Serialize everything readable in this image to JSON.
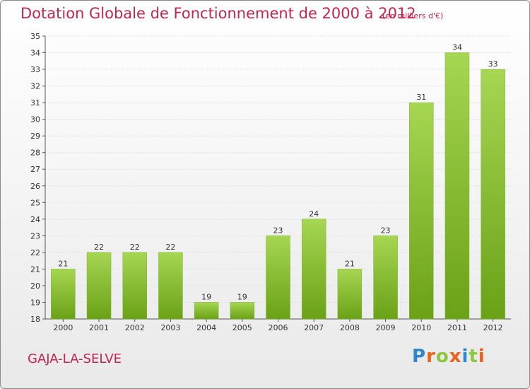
{
  "title": "Dotation Globale de Fonctionnement de 2000 à 2012",
  "subtitle": "(en milliers d'€)",
  "commune": "GAJA-LA-SELVE",
  "brand": {
    "letters": [
      "P",
      "r",
      "o",
      "x",
      "i",
      "t",
      "i"
    ],
    "colors": [
      "#2f86c8",
      "#e8641e",
      "#8cc63f",
      "#e8641e",
      "#2f86c8",
      "#8cc63f",
      "#e8641e"
    ]
  },
  "colors": {
    "title": "#c2264f",
    "bar_light": "#a6d653",
    "bar_dark": "#6aa116",
    "grid": "#dddddd"
  },
  "chart_data": {
    "type": "bar",
    "title": "Dotation Globale de Fonctionnement de 2000 à 2012",
    "subtitle": "(en milliers d'€)",
    "categories": [
      "2000",
      "2001",
      "2002",
      "2003",
      "2004",
      "2005",
      "2006",
      "2007",
      "2008",
      "2009",
      "2010",
      "2011",
      "2012"
    ],
    "values": [
      21,
      22,
      22,
      22,
      19,
      19,
      23,
      24,
      21,
      23,
      31,
      34,
      33
    ],
    "ylim": [
      18,
      35
    ],
    "yticks": [
      18,
      19,
      20,
      21,
      22,
      23,
      24,
      25,
      26,
      27,
      28,
      29,
      30,
      31,
      32,
      33,
      34,
      35
    ],
    "grid": true,
    "xlabel": "",
    "ylabel": ""
  }
}
